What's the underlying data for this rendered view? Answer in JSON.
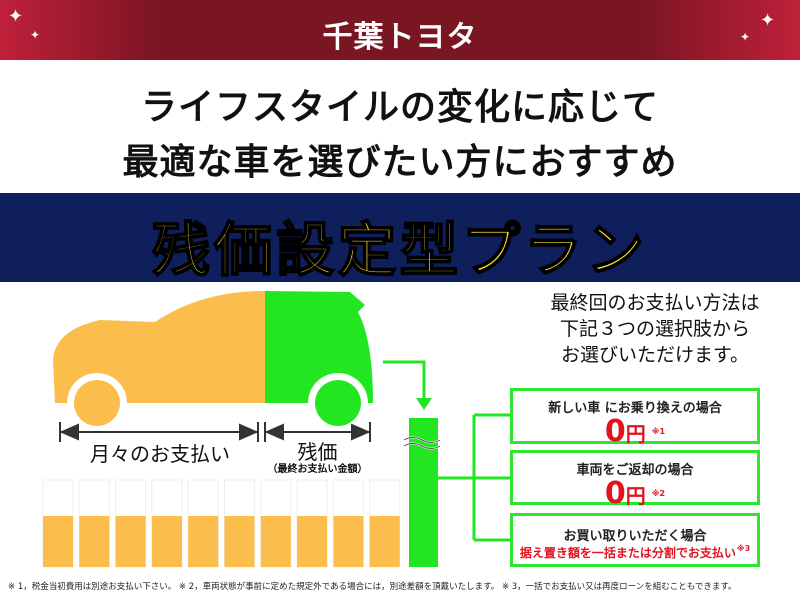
{
  "header": {
    "logo": "千葉トヨタ",
    "brand_color": "#7a1522"
  },
  "headline": {
    "line1": "ライフスタイルの変化に応じて",
    "line2": "最適な車を選びたい方におすすめ"
  },
  "plan": {
    "title": "残価設定型プラン",
    "band_color": "#0f1f5c",
    "title_color": "#ffe13a"
  },
  "diagram": {
    "monthly_label": "月々のお支払い",
    "residual_label": "残価",
    "residual_sub": "（最終お支払い金額）",
    "monthly_color": "#fbbd4c",
    "residual_color": "#22e622"
  },
  "intro": {
    "line1": "最終回のお支払い方法は",
    "line2": "下記３つの選択肢から",
    "line3": "お選びいただけます。"
  },
  "options": [
    {
      "title": "新しい車 にお乗り換えの場合",
      "amount": "0",
      "unit": "円",
      "note": "※1"
    },
    {
      "title": "車両をご返却の場合",
      "amount": "0",
      "unit": "円",
      "note": "※2"
    },
    {
      "title": "お買い取りいただく場合",
      "detail": "据え置き額を一括または分割でお支払い",
      "note": "※3"
    }
  ],
  "footnotes": "※ 1，税金当初費用は別途お支払い下さい。 ※ 2，車両状態が事前に定めた規定外である場合には，別途差額を頂戴いたします。 ※ 3，一括でお支払い又は再度ローンを組むこともできます。"
}
